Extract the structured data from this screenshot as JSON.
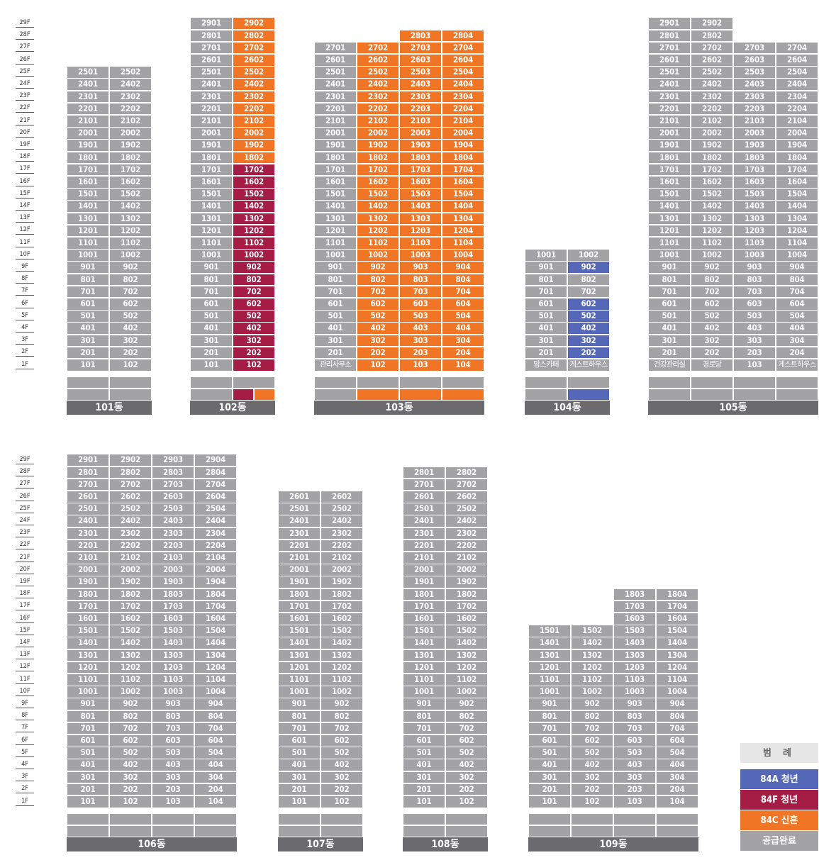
{
  "floor_labels": [
    "29F",
    "28F",
    "27F",
    "26F",
    "25F",
    "24F",
    "23F",
    "22F",
    "21F",
    "20F",
    "19F",
    "18F",
    "17F",
    "16F",
    "15F",
    "14F",
    "13F",
    "12F",
    "11F",
    "10F",
    "9F",
    "8F",
    "7F",
    "6F",
    "5F",
    "4F",
    "3F",
    "2F",
    "1F"
  ],
  "legend": {
    "title": "범 례",
    "items": [
      {
        "label": "84A 청년",
        "color": "#5568b8"
      },
      {
        "label": "84F 청년",
        "color": "#a51c44"
      },
      {
        "label": "84C 신혼",
        "color": "#f07626"
      },
      {
        "label": "공급완료",
        "color": "#a3a3a5"
      }
    ]
  },
  "colors": {
    "done": "#a3a3a5",
    "84C": "#f07626",
    "84F": "#a51c44",
    "84A": "#5568b8",
    "dong_bar": "#6b6b6d"
  },
  "buildings": [
    {
      "name": "101동",
      "columns": [
        {
          "ho": "1호",
          "type": "84C",
          "top": 25,
          "units": "auto",
          "status": "done"
        },
        {
          "ho": "2호",
          "type": "84C",
          "top": 25,
          "units": "auto",
          "status": "done"
        }
      ]
    },
    {
      "name": "102동",
      "columns": [
        {
          "ho": "1호",
          "type": "84D",
          "top": 29,
          "units": "auto",
          "status": "done"
        },
        {
          "ho": "2호",
          "types": [
            "84F",
            "84C"
          ],
          "top": 29,
          "units": "auto",
          "status_ranges": [
            {
              "from": 18,
              "to": 29,
              "status": "84C"
            },
            {
              "from": 1,
              "to": 17,
              "status": "84F"
            }
          ]
        }
      ]
    },
    {
      "name": "103동",
      "columns": [
        {
          "ho": "1호",
          "type": "84E",
          "top": 27,
          "units": "auto",
          "status": "done",
          "bottom_label": "관리사무소"
        },
        {
          "ho": "2호",
          "type": "84C",
          "top": 27,
          "units": "auto",
          "status": "84C"
        },
        {
          "ho": "3호",
          "type": "84C",
          "top": 28,
          "units": "auto",
          "status": "84C"
        },
        {
          "ho": "4호",
          "type": "84C",
          "top": 28,
          "units": "auto",
          "status": "84C"
        }
      ]
    },
    {
      "name": "104동",
      "columns": [
        {
          "ho": "1호",
          "type": "84B",
          "top": 10,
          "units": "auto",
          "status": "done",
          "bottom_label": "맘스카페"
        },
        {
          "ho": "2호",
          "type": "84A",
          "top": 10,
          "units": "auto",
          "status": "done",
          "bottom_label": "게스트하우스",
          "highlight_floors": [
            9,
            6,
            5,
            4,
            3,
            2
          ],
          "highlight_status": "84A"
        }
      ]
    },
    {
      "name": "105동",
      "columns": [
        {
          "ho": "1호",
          "type": "84D",
          "top": 29,
          "units": "auto",
          "status": "done",
          "bottom_label": "건강관리실"
        },
        {
          "ho": "2호",
          "type": "84C",
          "top": 29,
          "units": "auto",
          "status": "done",
          "bottom_label": "경로당"
        },
        {
          "ho": "3호",
          "type": "84C",
          "top": 27,
          "units": "auto",
          "status": "done"
        },
        {
          "ho": "4호",
          "type": "84D",
          "top": 27,
          "units": "auto",
          "status": "done",
          "bottom_label": "게스트하우스"
        }
      ]
    },
    {
      "name": "106동",
      "columns": [
        {
          "ho": "1호",
          "type": "74",
          "top": 29,
          "units": "auto",
          "status": "done"
        },
        {
          "ho": "2호",
          "type": "74",
          "top": 29,
          "units": "auto",
          "status": "done"
        },
        {
          "ho": "3호",
          "type": "74",
          "top": 29,
          "units": "auto",
          "status": "done"
        },
        {
          "ho": "4호",
          "type": "74",
          "top": 29,
          "units": "auto",
          "status": "done"
        }
      ]
    },
    {
      "name": "107동",
      "columns": [
        {
          "ho": "1호",
          "type": "74",
          "top": 26,
          "units": "auto",
          "status": "done"
        },
        {
          "ho": "2호",
          "type": "74",
          "top": 26,
          "units": "auto",
          "status": "done"
        }
      ]
    },
    {
      "name": "108동",
      "columns": [
        {
          "ho": "1호",
          "type": "84C",
          "top": 28,
          "units": "auto",
          "status": "done"
        },
        {
          "ho": "2호",
          "type": "84C",
          "top": 28,
          "units": "auto",
          "status": "done"
        }
      ]
    },
    {
      "name": "109동",
      "columns": [
        {
          "ho": "1호",
          "type": "84D",
          "top": 15,
          "units": "auto",
          "status": "done"
        },
        {
          "ho": "2호",
          "type": "84C",
          "top": 15,
          "units": "auto",
          "status": "done"
        },
        {
          "ho": "3호",
          "type": "84C",
          "top": 18,
          "units": "auto",
          "status": "done"
        },
        {
          "ho": "4호",
          "type": "84C",
          "top": 18,
          "units": "auto",
          "status": "done"
        }
      ]
    }
  ]
}
